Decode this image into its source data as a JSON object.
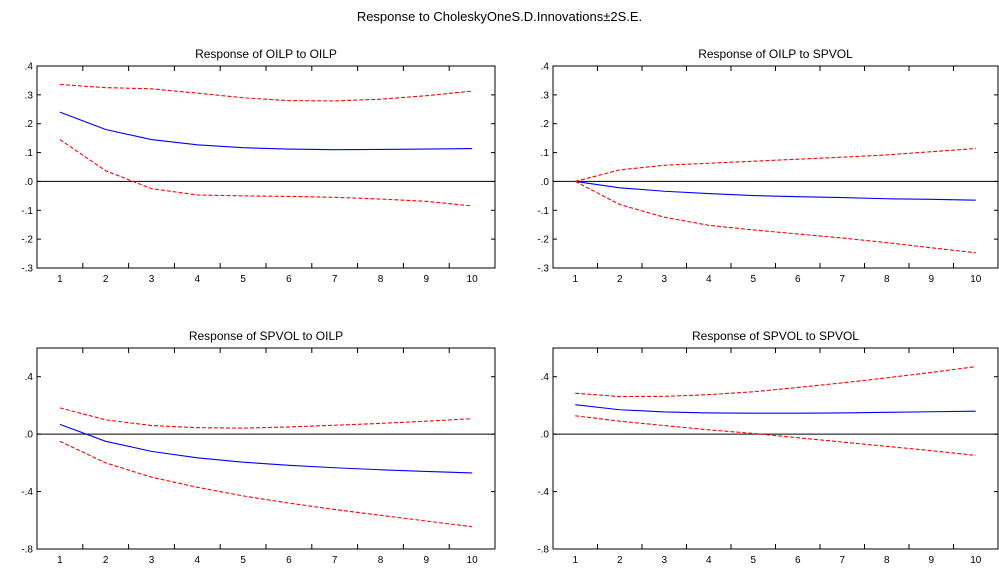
{
  "title": "Response to CholeskyOneS.D.Innovations±2S.E.",
  "colors": {
    "response": "#0000ff",
    "bands": "#ff0000",
    "zero_line": "#000000",
    "frame": "#000000"
  },
  "chart_data": [
    {
      "type": "line",
      "title": "Response of OILP to OILP",
      "x": [
        1,
        2,
        3,
        4,
        5,
        6,
        7,
        8,
        9,
        10
      ],
      "ylim": [
        -0.3,
        0.4
      ],
      "yticks": [
        ".4",
        ".3",
        ".2",
        ".1",
        ".0",
        "-.1",
        "-.2",
        "-.3"
      ],
      "ytick_values": [
        0.4,
        0.3,
        0.2,
        0.1,
        0.0,
        -0.1,
        -0.2,
        -0.3
      ],
      "series": [
        {
          "role": "response",
          "values": [
            0.24,
            0.18,
            0.145,
            0.127,
            0.117,
            0.112,
            0.11,
            0.111,
            0.112,
            0.114
          ]
        },
        {
          "role": "upper",
          "values": [
            0.336,
            0.325,
            0.321,
            0.306,
            0.29,
            0.28,
            0.279,
            0.285,
            0.297,
            0.313
          ]
        },
        {
          "role": "lower",
          "values": [
            0.145,
            0.037,
            -0.025,
            -0.047,
            -0.05,
            -0.052,
            -0.055,
            -0.061,
            -0.069,
            -0.085
          ]
        }
      ]
    },
    {
      "type": "line",
      "title": "Response of OILP to SPVOL",
      "x": [
        1,
        2,
        3,
        4,
        5,
        6,
        7,
        8,
        9,
        10
      ],
      "ylim": [
        -0.3,
        0.4
      ],
      "yticks": [
        ".4",
        ".3",
        ".2",
        ".1",
        ".0",
        "-.1",
        "-.2",
        "-.3"
      ],
      "ytick_values": [
        0.4,
        0.3,
        0.2,
        0.1,
        0.0,
        -0.1,
        -0.2,
        -0.3
      ],
      "series": [
        {
          "role": "response",
          "values": [
            0.0,
            -0.022,
            -0.034,
            -0.042,
            -0.049,
            -0.053,
            -0.056,
            -0.06,
            -0.062,
            -0.065
          ]
        },
        {
          "role": "upper",
          "values": [
            0.0,
            0.04,
            0.056,
            0.063,
            0.07,
            0.077,
            0.084,
            0.092,
            0.103,
            0.114
          ]
        },
        {
          "role": "lower",
          "values": [
            0.0,
            -0.08,
            -0.124,
            -0.152,
            -0.168,
            -0.182,
            -0.196,
            -0.212,
            -0.23,
            -0.247
          ]
        }
      ]
    },
    {
      "type": "line",
      "title": "Response of SPVOL to OILP",
      "x": [
        1,
        2,
        3,
        4,
        5,
        6,
        7,
        8,
        9,
        10
      ],
      "ylim": [
        -0.8,
        0.6
      ],
      "yticks": [
        ".4",
        ".0",
        "-.4",
        "-.8"
      ],
      "ytick_values": [
        0.4,
        0.0,
        -0.4,
        -0.8
      ],
      "series": [
        {
          "role": "response",
          "values": [
            0.068,
            -0.05,
            -0.12,
            -0.165,
            -0.195,
            -0.217,
            -0.234,
            -0.248,
            -0.26,
            -0.27
          ]
        },
        {
          "role": "upper",
          "values": [
            0.183,
            0.1,
            0.06,
            0.045,
            0.042,
            0.05,
            0.062,
            0.075,
            0.09,
            0.108
          ]
        },
        {
          "role": "lower",
          "values": [
            -0.05,
            -0.2,
            -0.3,
            -0.37,
            -0.43,
            -0.48,
            -0.525,
            -0.565,
            -0.605,
            -0.645
          ]
        }
      ]
    },
    {
      "type": "line",
      "title": "Response of SPVOL to SPVOL",
      "x": [
        1,
        2,
        3,
        4,
        5,
        6,
        7,
        8,
        9,
        10
      ],
      "ylim": [
        -0.8,
        0.6
      ],
      "yticks": [
        ".4",
        ".0",
        "-.4",
        "-.8"
      ],
      "ytick_values": [
        0.4,
        0.0,
        -0.4,
        -0.8
      ],
      "series": [
        {
          "role": "response",
          "values": [
            0.205,
            0.17,
            0.155,
            0.148,
            0.146,
            0.146,
            0.148,
            0.152,
            0.156,
            0.16
          ]
        },
        {
          "role": "upper",
          "values": [
            0.285,
            0.262,
            0.263,
            0.275,
            0.295,
            0.325,
            0.357,
            0.392,
            0.43,
            0.47
          ]
        },
        {
          "role": "lower",
          "values": [
            0.128,
            0.09,
            0.06,
            0.03,
            0.005,
            -0.025,
            -0.055,
            -0.085,
            -0.115,
            -0.148
          ]
        }
      ]
    }
  ]
}
